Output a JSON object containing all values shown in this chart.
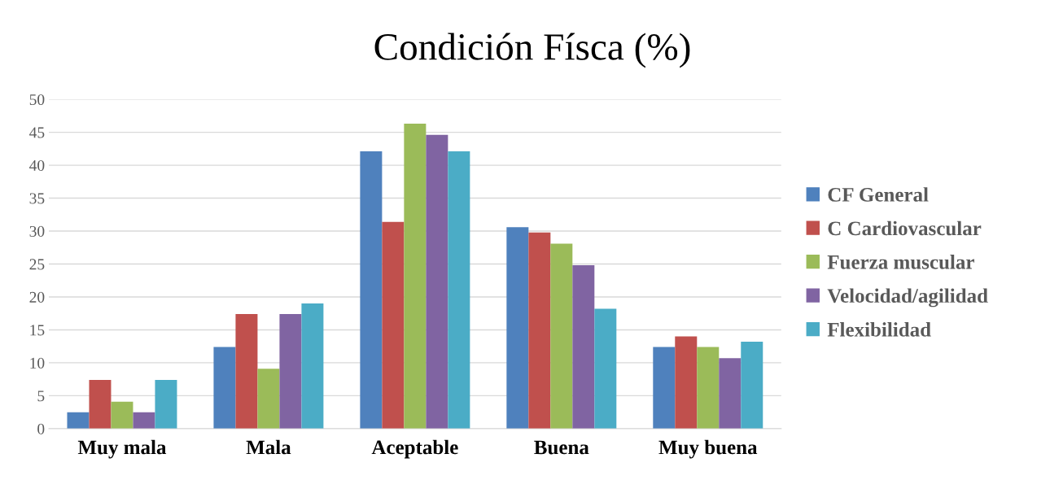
{
  "chart_data": {
    "type": "bar",
    "title": "Condición Físca (%)",
    "categories": [
      "Muy mala",
      "Mala",
      "Aceptable",
      "Buena",
      "Muy buena"
    ],
    "series": [
      {
        "name": "CF General",
        "color": "#4f81bd",
        "values": [
          2.5,
          12.4,
          42.1,
          30.6,
          12.4
        ]
      },
      {
        "name": "C Cardiovascular",
        "color": "#c0504d",
        "values": [
          7.4,
          17.4,
          31.4,
          29.8,
          14.0
        ]
      },
      {
        "name": "Fuerza muscular",
        "color": "#9bbb59",
        "values": [
          4.1,
          9.1,
          46.3,
          28.1,
          12.4
        ]
      },
      {
        "name": "Velocidad/agilidad",
        "color": "#8064a2",
        "values": [
          2.5,
          17.4,
          44.6,
          24.8,
          10.7
        ]
      },
      {
        "name": "Flexibilidad",
        "color": "#4bacc6",
        "values": [
          7.4,
          19.0,
          42.1,
          18.2,
          13.2
        ]
      }
    ],
    "ylim": [
      0,
      50
    ],
    "yticks": [
      0,
      5,
      10,
      15,
      20,
      25,
      30,
      35,
      40,
      45,
      50
    ],
    "grid": "y",
    "legend": "right"
  }
}
